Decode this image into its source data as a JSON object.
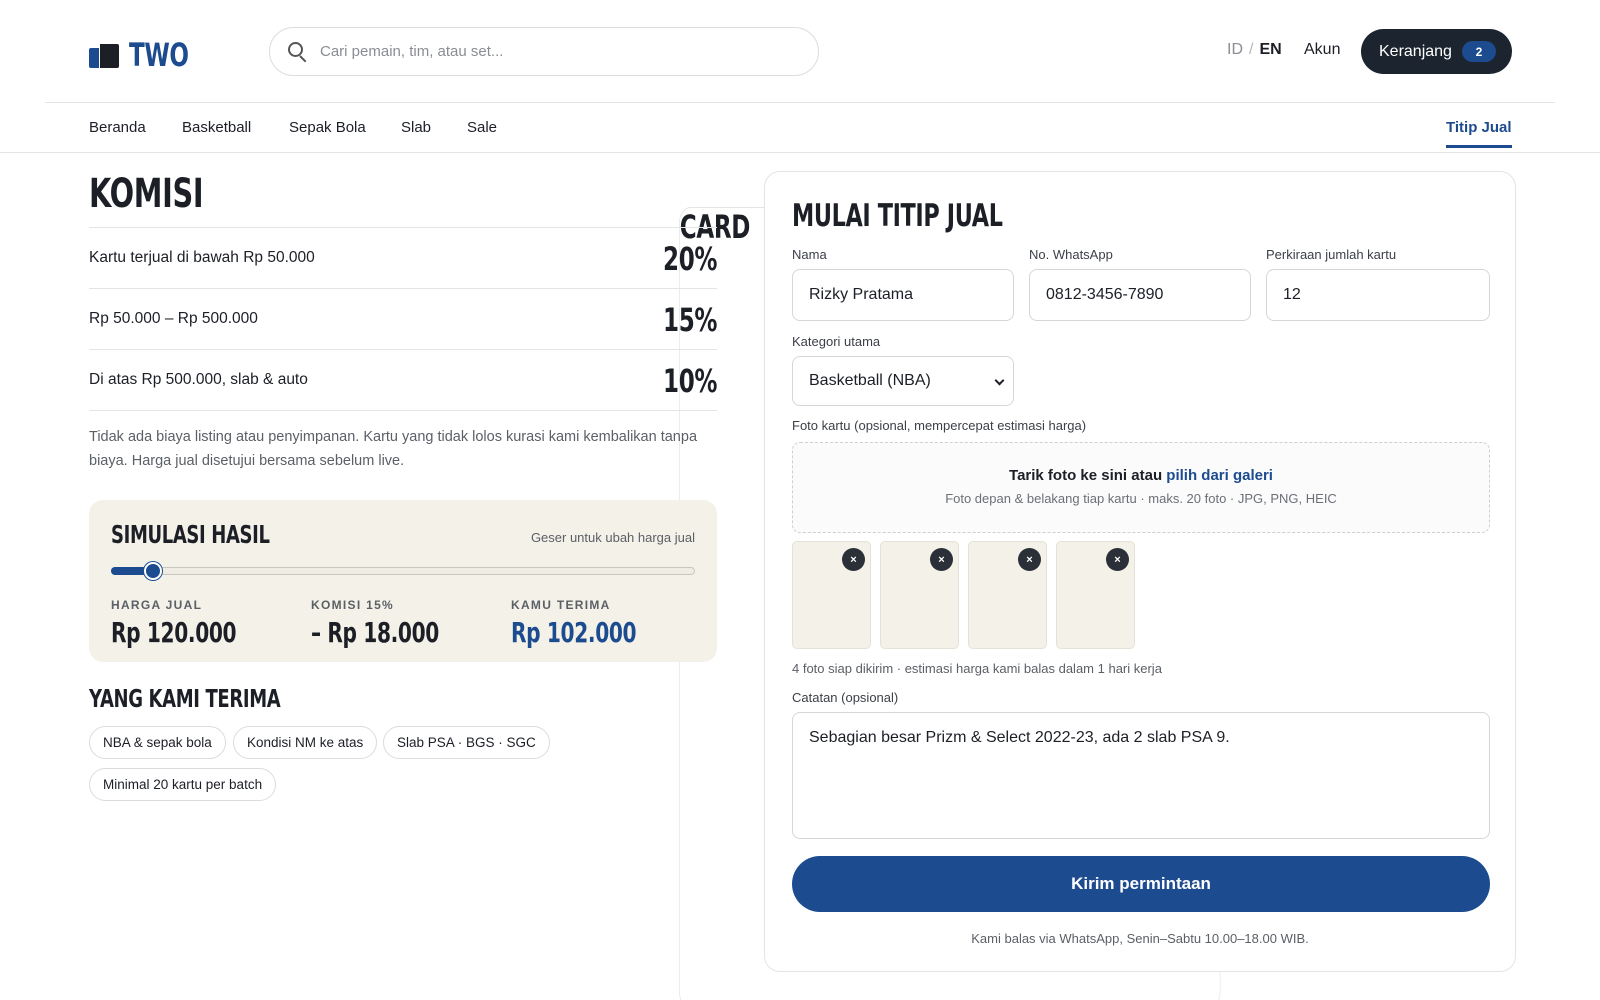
{
  "brand": {
    "part1": "CARD",
    "part2": "TWO"
  },
  "search": {
    "placeholder": "Cari pemain, tim, atau set..."
  },
  "header": {
    "lang_id": "ID",
    "lang_sep": "/",
    "lang_en": "EN",
    "account": "Akun",
    "cart_label": "Keranjang",
    "cart_count": "2"
  },
  "nav": {
    "items": [
      "Beranda",
      "Basketball",
      "Sepak Bola",
      "Slab",
      "Sale"
    ],
    "active": "Titip Jual"
  },
  "commission": {
    "title": "KOMISI",
    "rows": [
      {
        "label": "Kartu terjual di bawah Rp 50.000",
        "rate": "20%"
      },
      {
        "label": "Rp 50.000 – Rp 500.000",
        "rate": "15%"
      },
      {
        "label": "Di atas Rp 500.000, slab & auto",
        "rate": "10%"
      }
    ],
    "note": "Tidak ada biaya listing atau penyimpanan. Kartu yang tidak lolos kurasi kami kembalikan tanpa biaya. Harga jual disetujui bersama sebelum live."
  },
  "simulation": {
    "title": "SIMULASI HASIL",
    "hint": "Geser untuk ubah harga jual",
    "slider_fraction": 0.07,
    "sale_label": "HARGA JUAL",
    "sale_value": "Rp 120.000",
    "commission_label": "KOMISI 15%",
    "commission_value": "– Rp 18.000",
    "receive_label": "KAMU TERIMA",
    "receive_value": "Rp 102.000"
  },
  "accepted": {
    "title": "YANG KAMI TERIMA",
    "chips": [
      "NBA & sepak bola",
      "Kondisi NM ke atas",
      "Slab PSA · BGS · SGC",
      "Minimal 20 kartu per batch"
    ]
  },
  "form": {
    "title": "MULAI TITIP JUAL",
    "name_label": "Nama",
    "name_value": "Rizky Pratama",
    "whatsapp_label": "No. WhatsApp",
    "whatsapp_value": "0812-3456-7890",
    "count_label": "Perkiraan jumlah kartu",
    "count_value": "12",
    "category_label": "Kategori utama",
    "category_value": "Basketball (NBA)",
    "photo_label": "Foto kartu (opsional, mempercepat estimasi harga)",
    "dropzone_text": "Tarik foto ke sini atau",
    "dropzone_link": "pilih dari galeri",
    "dropzone_sub": "Foto depan & belakang tiap kartu · maks. 20 foto · JPG, PNG, HEIC",
    "remove_glyph": "×",
    "photo_status": "4 foto siap dikirim · estimasi harga kami balas dalam 1 hari kerja",
    "notes_label": "Catatan (opsional)",
    "notes_value": "Sebagian besar Prizm & Select 2022-23, ada 2 slab PSA 9.",
    "submit_label": "Kirim permintaan",
    "reply_note": "Kami balas via WhatsApp, Senin–Sabtu 10.00–18.00 WIB."
  },
  "colors": {
    "accent": "#1d4b8f",
    "dark": "#1c2430",
    "panel": "#f3f1e8"
  }
}
